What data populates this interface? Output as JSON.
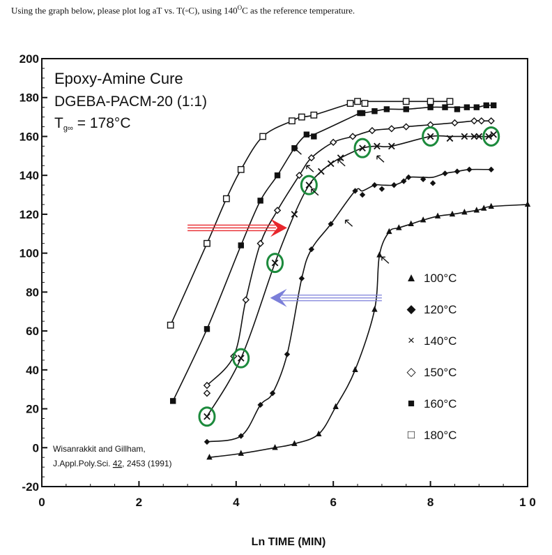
{
  "question": {
    "prefix": "Using the graph below, please plot log aT vs. T(",
    "degree_symbol": "◦",
    "mid": "C), using 140",
    "sup": "O",
    "suffix": "C as the reference temperature."
  },
  "chart_data": {
    "type": "scatter",
    "title": "Epoxy-Amine Cure",
    "subtitle": "DGEBA-PACM-20 (1:1)",
    "tg_label": "T",
    "tg_sub": "g∞",
    "tg_value": "= 178°C",
    "citation_line1": "Wisanrakkit and Gillham,",
    "citation_line2_prefix": "J.Appl.Poly.Sci. ",
    "citation_volume": "42",
    "citation_line2_suffix": ", 2453 (1991)",
    "xlabel": "Ln TIME (MIN)",
    "ylabel": "",
    "xlim": [
      0,
      10
    ],
    "ylim": [
      -20,
      200
    ],
    "xticks": [
      "0",
      "2",
      "4",
      "6",
      "8",
      "1 0"
    ],
    "xtick_values": [
      0,
      2,
      4,
      6,
      8,
      10
    ],
    "yticks": [
      "200",
      "180",
      "160",
      "140",
      "120",
      "100",
      "80",
      "60",
      "40",
      "20",
      "0",
      "-20"
    ],
    "ytick_values": [
      200,
      180,
      160,
      140,
      120,
      100,
      80,
      60,
      40,
      20,
      0,
      -20
    ],
    "series": [
      {
        "name": "100°C",
        "marker": "triangle",
        "x": [
          3.45,
          4.1,
          4.8,
          5.2,
          5.7,
          6.05,
          6.45,
          6.85,
          6.95,
          7.15,
          7.35,
          7.6,
          7.85,
          8.15,
          8.45,
          8.7,
          8.95,
          9.1,
          9.25,
          10.0
        ],
        "y": [
          -5,
          -3,
          0,
          2,
          7,
          21,
          40,
          71,
          99,
          111,
          113,
          115,
          117,
          119,
          120,
          121,
          122,
          123,
          124,
          125
        ]
      },
      {
        "name": "120°C",
        "marker": "diamond",
        "x": [
          3.4,
          4.1,
          4.5,
          4.75,
          5.05,
          5.35,
          5.55,
          5.95,
          6.45,
          6.6,
          6.85,
          7.0,
          7.25,
          7.45,
          7.55,
          7.85,
          8.05,
          8.3,
          8.55,
          8.8,
          9.25
        ],
        "y": [
          3,
          6,
          22,
          28,
          48,
          87,
          102,
          115,
          132,
          130,
          135,
          133,
          135,
          137,
          139,
          138,
          136,
          141,
          142,
          143,
          143
        ]
      },
      {
        "name": "140°C",
        "marker": "cross",
        "x": [
          3.4,
          4.1,
          4.8,
          5.2,
          5.5,
          5.75,
          5.95,
          6.15,
          6.6,
          6.9,
          7.2,
          8.0,
          8.4,
          8.7,
          8.9,
          9.0,
          9.2,
          9.3
        ],
        "y": [
          16,
          46,
          95,
          120,
          135,
          142,
          146,
          149,
          154,
          155,
          155,
          160,
          159,
          160,
          160,
          160,
          160,
          161
        ]
      },
      {
        "name": "150°C",
        "marker": "diamond-open",
        "x": [
          3.4,
          3.4,
          3.95,
          4.2,
          4.5,
          4.85,
          5.3,
          5.55,
          6.0,
          6.4,
          6.8,
          7.2,
          7.5,
          8.0,
          8.5,
          8.9,
          9.05,
          9.25
        ],
        "y": [
          32,
          28,
          47,
          76,
          105,
          122,
          140,
          149,
          157,
          160,
          163,
          164,
          165,
          166,
          167,
          168,
          168,
          168
        ]
      },
      {
        "name": "160°C",
        "marker": "square",
        "x": [
          2.7,
          3.4,
          4.1,
          4.5,
          4.85,
          5.2,
          5.45,
          5.6,
          6.55,
          6.6,
          6.85,
          7.1,
          7.5,
          8.0,
          8.3,
          8.55,
          8.75,
          8.95,
          9.15,
          9.3
        ],
        "y": [
          24,
          61,
          104,
          127,
          140,
          154,
          161,
          160,
          172,
          172,
          173,
          174,
          174,
          175,
          175,
          174,
          175,
          175,
          176,
          176
        ]
      },
      {
        "name": "180°C",
        "marker": "square-open",
        "x": [
          2.65,
          3.4,
          3.8,
          4.1,
          4.55,
          5.15,
          5.35,
          5.6,
          6.35,
          6.5,
          6.65,
          7.5,
          8.0,
          8.4
        ],
        "y": [
          63,
          105,
          128,
          143,
          160,
          168,
          170,
          171,
          177,
          178,
          177,
          178,
          178,
          178
        ]
      }
    ],
    "legend": {
      "placement": "right",
      "entries": [
        {
          "symbol": "▲",
          "label": "100°C"
        },
        {
          "symbol": "◆",
          "label": "120°C"
        },
        {
          "symbol": "×",
          "label": "140°C"
        },
        {
          "symbol": "◇",
          "label": "150°C"
        },
        {
          "symbol": "■",
          "label": "160°C"
        },
        {
          "symbol": "□",
          "label": "180°C"
        }
      ]
    },
    "annotations": {
      "green_circles": [
        {
          "x": 3.4,
          "y": 16
        },
        {
          "x": 4.1,
          "y": 46
        },
        {
          "x": 4.8,
          "y": 95
        },
        {
          "x": 5.5,
          "y": 135
        },
        {
          "x": 6.6,
          "y": 154
        },
        {
          "x": 8.0,
          "y": 160
        },
        {
          "x": 9.25,
          "y": 160
        }
      ],
      "red_arrow": {
        "from": [
          3.0,
          113
        ],
        "to": [
          5.05,
          113
        ],
        "color": "#e8262b"
      },
      "blue_arrow": {
        "from": [
          7.0,
          77
        ],
        "to": [
          4.7,
          77
        ],
        "color": "#7b7fd9"
      }
    },
    "colors": {
      "circle": "#1c8a3c",
      "axis": "#111111",
      "plot_bg": "#ffffff"
    }
  }
}
